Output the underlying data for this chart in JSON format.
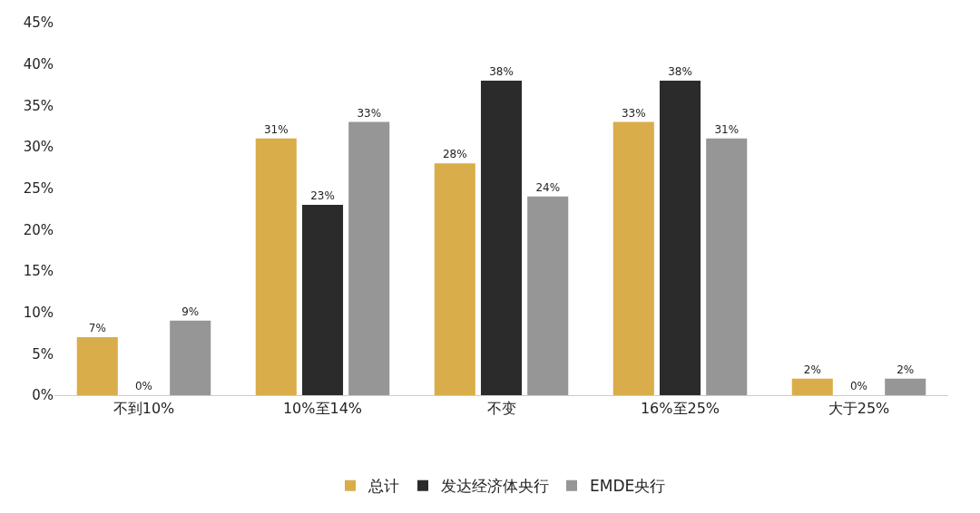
{
  "chart_data": {
    "type": "bar",
    "categories": [
      "不到10%",
      "10%至14%",
      "不变",
      "16%至25%",
      "大于25%"
    ],
    "series": [
      {
        "name": "总计",
        "color": "#d9ad4a",
        "values": [
          7,
          31,
          28,
          33,
          2
        ],
        "value_labels": [
          "7%",
          "31%",
          "28%",
          "33%",
          "2%"
        ]
      },
      {
        "name": "发达经济体央行",
        "color": "#2b2b2b",
        "values": [
          0,
          23,
          38,
          38,
          0
        ],
        "value_labels": [
          "0%",
          "23%",
          "38%",
          "38%",
          "0%"
        ]
      },
      {
        "name": "EMDE央行",
        "color": "#969696",
        "values": [
          9,
          33,
          24,
          31,
          2
        ],
        "value_labels": [
          "9%",
          "33%",
          "24%",
          "31%",
          "2%"
        ]
      }
    ],
    "ylim": [
      0,
      45
    ],
    "yticks": [
      {
        "value": 0,
        "label": "0%"
      },
      {
        "value": 5,
        "label": "5%"
      },
      {
        "value": 10,
        "label": "10%"
      },
      {
        "value": 15,
        "label": "15%"
      },
      {
        "value": 20,
        "label": "20%"
      },
      {
        "value": 25,
        "label": "25%"
      },
      {
        "value": 30,
        "label": "30%"
      },
      {
        "value": 35,
        "label": "35%"
      },
      {
        "value": 40,
        "label": "40%"
      },
      {
        "value": 45,
        "label": "45%"
      }
    ],
    "grid": false,
    "legend": "bottom"
  }
}
